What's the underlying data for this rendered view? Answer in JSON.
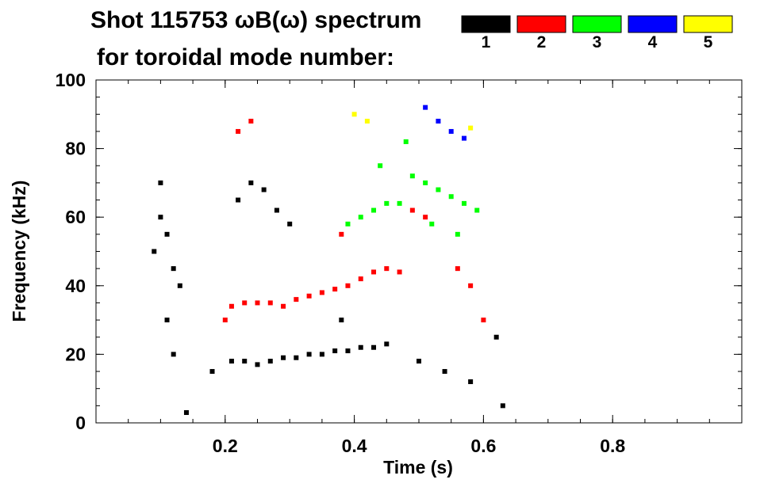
{
  "chart_data": {
    "type": "scatter",
    "title_line1": "Shot 115753 ωB(ω) spectrum",
    "title_line2": "for toroidal mode number:",
    "xlabel": "Time (s)",
    "ylabel": "Frequency (kHz)",
    "xlim": [
      0.0,
      1.0
    ],
    "ylim": [
      0,
      100
    ],
    "xticks": [
      {
        "value": 0.2,
        "label": "0.2"
      },
      {
        "value": 0.4,
        "label": "0.4"
      },
      {
        "value": 0.6,
        "label": "0.6"
      },
      {
        "value": 0.8,
        "label": "0.8"
      }
    ],
    "yticks": [
      {
        "value": 0,
        "label": "0"
      },
      {
        "value": 20,
        "label": "20"
      },
      {
        "value": 40,
        "label": "40"
      },
      {
        "value": 60,
        "label": "60"
      },
      {
        "value": 80,
        "label": "80"
      },
      {
        "value": 100,
        "label": "100"
      }
    ],
    "legend": [
      {
        "label": "1",
        "color": "#000000"
      },
      {
        "label": "2",
        "color": "#ff0000"
      },
      {
        "label": "3",
        "color": "#00ff00"
      },
      {
        "label": "4",
        "color": "#0000ff"
      },
      {
        "label": "5",
        "color": "#ffff00"
      }
    ],
    "series": [
      {
        "name": "1",
        "color": "#000000",
        "x": [
          0.09,
          0.1,
          0.11,
          0.12,
          0.13,
          0.1,
          0.11,
          0.12,
          0.21,
          0.23,
          0.25,
          0.27,
          0.29,
          0.31,
          0.33,
          0.35,
          0.37,
          0.39,
          0.41,
          0.43,
          0.45,
          0.22,
          0.24,
          0.26,
          0.28,
          0.3,
          0.5,
          0.54,
          0.58,
          0.62,
          0.63,
          0.14,
          0.18,
          0.38
        ],
        "y": [
          50,
          60,
          55,
          45,
          40,
          70,
          30,
          20,
          18,
          18,
          17,
          18,
          19,
          19,
          20,
          20,
          21,
          21,
          22,
          22,
          23,
          65,
          70,
          68,
          62,
          58,
          18,
          15,
          12,
          25,
          5,
          3,
          15,
          30
        ]
      },
      {
        "name": "2",
        "color": "#ff0000",
        "x": [
          0.2,
          0.21,
          0.23,
          0.25,
          0.27,
          0.29,
          0.31,
          0.33,
          0.35,
          0.37,
          0.39,
          0.41,
          0.43,
          0.45,
          0.47,
          0.22,
          0.24,
          0.38,
          0.49,
          0.51,
          0.56,
          0.58,
          0.6
        ],
        "y": [
          30,
          34,
          35,
          35,
          35,
          34,
          36,
          37,
          38,
          39,
          40,
          42,
          44,
          45,
          44,
          85,
          88,
          55,
          62,
          60,
          45,
          40,
          30
        ]
      },
      {
        "name": "3",
        "color": "#00ff00",
        "x": [
          0.39,
          0.41,
          0.43,
          0.45,
          0.47,
          0.49,
          0.51,
          0.53,
          0.55,
          0.57,
          0.59,
          0.44,
          0.48,
          0.52,
          0.56
        ],
        "y": [
          58,
          60,
          62,
          64,
          64,
          72,
          70,
          68,
          66,
          64,
          62,
          75,
          82,
          58,
          55
        ]
      },
      {
        "name": "4",
        "color": "#0000ff",
        "x": [
          0.51,
          0.53,
          0.55,
          0.57
        ],
        "y": [
          92,
          88,
          85,
          83
        ]
      },
      {
        "name": "5",
        "color": "#ffff00",
        "x": [
          0.4,
          0.42,
          0.58
        ],
        "y": [
          90,
          88,
          86
        ]
      }
    ]
  }
}
